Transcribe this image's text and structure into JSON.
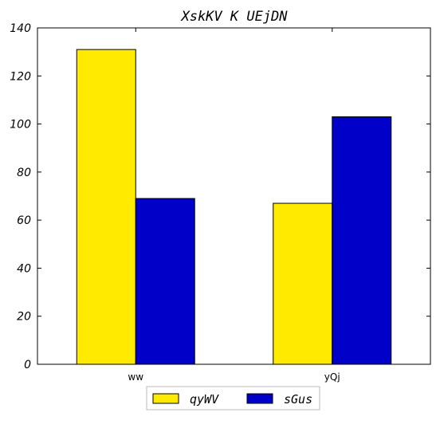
{
  "chart_data": {
    "type": "bar",
    "title": "XskKV  K UEjDN",
    "categories": [
      "ww",
      "yQj"
    ],
    "series": [
      {
        "name": "qyWV",
        "values": [
          131,
          67
        ],
        "color": "#ffea00"
      },
      {
        "name": "sGus",
        "values": [
          69,
          103
        ],
        "color": "#0000c8"
      }
    ],
    "ylim": [
      0,
      140
    ],
    "yticks": [
      0,
      20,
      40,
      60,
      80,
      100,
      120,
      140
    ],
    "xlabel": "",
    "ylabel": "",
    "grid": false,
    "legend_position": "bottom-center"
  }
}
